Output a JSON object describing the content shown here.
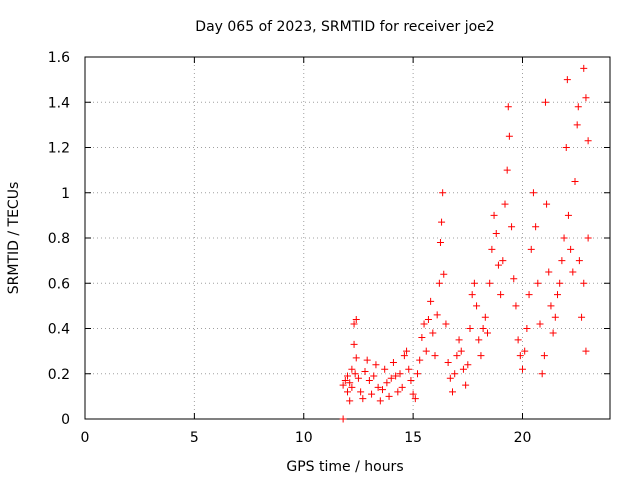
{
  "chart_data": {
    "type": "scatter",
    "title": "Day 065 of 2023, SRMTID for receiver joe2",
    "xlabel": "GPS time / hours",
    "ylabel": "SRMTID / TECUs",
    "xlim": [
      0,
      24
    ],
    "ylim": [
      0,
      1.6
    ],
    "xticks": [
      0,
      5,
      10,
      15,
      20
    ],
    "yticks": [
      0,
      0.2,
      0.4,
      0.6,
      0.8,
      1,
      1.2,
      1.4,
      1.6
    ],
    "ytick_labels": [
      "0",
      "0.2",
      "0.4",
      "0.6",
      "0.8",
      "1",
      "1.2",
      "1.4",
      "1.6"
    ],
    "grid": true,
    "marker": "plus",
    "series": [
      {
        "name": "SRMTID",
        "color": "#ff0000",
        "points": [
          [
            11.8,
            0.0
          ],
          [
            11.8,
            0.15
          ],
          [
            11.9,
            0.17
          ],
          [
            12.0,
            0.12
          ],
          [
            12.0,
            0.19
          ],
          [
            12.1,
            0.08
          ],
          [
            12.1,
            0.16
          ],
          [
            12.2,
            0.22
          ],
          [
            12.2,
            0.14
          ],
          [
            12.3,
            0.42
          ],
          [
            12.3,
            0.33
          ],
          [
            12.35,
            0.2
          ],
          [
            12.4,
            0.44
          ],
          [
            12.4,
            0.27
          ],
          [
            12.5,
            0.18
          ],
          [
            12.6,
            0.12
          ],
          [
            12.7,
            0.09
          ],
          [
            12.8,
            0.21
          ],
          [
            12.9,
            0.26
          ],
          [
            13.0,
            0.17
          ],
          [
            13.1,
            0.11
          ],
          [
            13.2,
            0.19
          ],
          [
            13.3,
            0.24
          ],
          [
            13.4,
            0.14
          ],
          [
            13.5,
            0.08
          ],
          [
            13.6,
            0.13
          ],
          [
            13.7,
            0.22
          ],
          [
            13.8,
            0.16
          ],
          [
            13.9,
            0.1
          ],
          [
            14.0,
            0.18
          ],
          [
            14.1,
            0.25
          ],
          [
            14.2,
            0.19
          ],
          [
            14.3,
            0.12
          ],
          [
            14.4,
            0.2
          ],
          [
            14.5,
            0.14
          ],
          [
            14.6,
            0.28
          ],
          [
            14.7,
            0.3
          ],
          [
            14.8,
            0.22
          ],
          [
            14.9,
            0.17
          ],
          [
            15.0,
            0.11
          ],
          [
            15.1,
            0.09
          ],
          [
            15.2,
            0.2
          ],
          [
            15.3,
            0.26
          ],
          [
            15.4,
            0.36
          ],
          [
            15.5,
            0.42
          ],
          [
            15.6,
            0.3
          ],
          [
            15.7,
            0.44
          ],
          [
            15.8,
            0.52
          ],
          [
            15.9,
            0.38
          ],
          [
            16.0,
            0.28
          ],
          [
            16.1,
            0.46
          ],
          [
            16.2,
            0.6
          ],
          [
            16.25,
            0.78
          ],
          [
            16.3,
            0.87
          ],
          [
            16.35,
            1.0
          ],
          [
            16.4,
            0.64
          ],
          [
            16.5,
            0.42
          ],
          [
            16.6,
            0.25
          ],
          [
            16.7,
            0.18
          ],
          [
            16.8,
            0.12
          ],
          [
            16.9,
            0.2
          ],
          [
            17.0,
            0.28
          ],
          [
            17.1,
            0.35
          ],
          [
            17.2,
            0.3
          ],
          [
            17.3,
            0.22
          ],
          [
            17.4,
            0.15
          ],
          [
            17.5,
            0.24
          ],
          [
            17.6,
            0.4
          ],
          [
            17.7,
            0.55
          ],
          [
            17.8,
            0.6
          ],
          [
            17.9,
            0.5
          ],
          [
            18.0,
            0.35
          ],
          [
            18.1,
            0.28
          ],
          [
            18.2,
            0.4
          ],
          [
            18.3,
            0.45
          ],
          [
            18.4,
            0.38
          ],
          [
            18.5,
            0.6
          ],
          [
            18.6,
            0.75
          ],
          [
            18.7,
            0.9
          ],
          [
            18.8,
            0.82
          ],
          [
            18.9,
            0.68
          ],
          [
            19.0,
            0.55
          ],
          [
            19.1,
            0.7
          ],
          [
            19.2,
            0.95
          ],
          [
            19.3,
            1.1
          ],
          [
            19.35,
            1.38
          ],
          [
            19.4,
            1.25
          ],
          [
            19.5,
            0.85
          ],
          [
            19.6,
            0.62
          ],
          [
            19.7,
            0.5
          ],
          [
            19.8,
            0.35
          ],
          [
            19.9,
            0.28
          ],
          [
            20.0,
            0.22
          ],
          [
            20.1,
            0.3
          ],
          [
            20.2,
            0.4
          ],
          [
            20.3,
            0.55
          ],
          [
            20.4,
            0.75
          ],
          [
            20.5,
            1.0
          ],
          [
            20.6,
            0.85
          ],
          [
            20.7,
            0.6
          ],
          [
            20.8,
            0.42
          ],
          [
            20.9,
            0.2
          ],
          [
            21.0,
            0.28
          ],
          [
            21.05,
            1.4
          ],
          [
            21.1,
            0.95
          ],
          [
            21.2,
            0.65
          ],
          [
            21.3,
            0.5
          ],
          [
            21.4,
            0.38
          ],
          [
            21.5,
            0.45
          ],
          [
            21.6,
            0.55
          ],
          [
            21.7,
            0.6
          ],
          [
            21.8,
            0.7
          ],
          [
            21.9,
            0.8
          ],
          [
            22.0,
            1.2
          ],
          [
            22.05,
            1.5
          ],
          [
            22.1,
            0.9
          ],
          [
            22.2,
            0.75
          ],
          [
            22.3,
            0.65
          ],
          [
            22.4,
            1.05
          ],
          [
            22.5,
            1.3
          ],
          [
            22.55,
            1.38
          ],
          [
            22.6,
            0.7
          ],
          [
            22.7,
            0.45
          ],
          [
            22.8,
            1.55
          ],
          [
            22.8,
            0.6
          ],
          [
            22.9,
            1.42
          ],
          [
            22.9,
            0.3
          ],
          [
            23.0,
            1.23
          ],
          [
            23.0,
            0.8
          ]
        ]
      }
    ]
  }
}
